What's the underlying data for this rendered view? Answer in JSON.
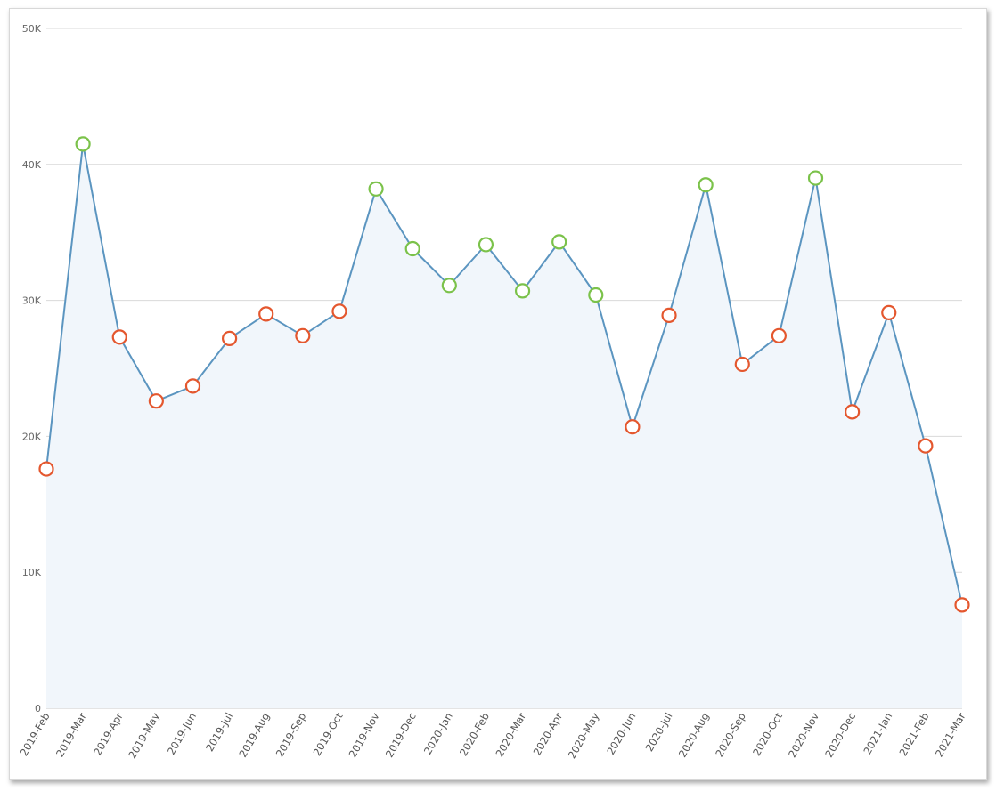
{
  "chart_data": {
    "type": "line",
    "title": "",
    "xlabel": "",
    "ylabel": "",
    "ylim": [
      0,
      50000
    ],
    "yticks": [
      0,
      10000,
      20000,
      30000,
      40000,
      50000
    ],
    "ytick_labels": [
      "0",
      "10K",
      "20K",
      "30K",
      "40K",
      "50K"
    ],
    "grid": true,
    "area_fill": true,
    "colors": {
      "line": "#5b95c0",
      "area": "#f1f6fb",
      "above_average_marker": "#7bc24a",
      "below_average_marker": "#e4572e",
      "gridline": "#d9d9d9"
    },
    "categories": [
      "2019-Feb",
      "2019-Mar",
      "2019-Apr",
      "2019-May",
      "2019-Jun",
      "2019-Jul",
      "2019-Aug",
      "2019-Sep",
      "2019-Oct",
      "2019-Nov",
      "2019-Dec",
      "2020-Jan",
      "2020-Feb",
      "2020-Mar",
      "2020-Apr",
      "2020-May",
      "2020-Jun",
      "2020-Jul",
      "2020-Aug",
      "2020-Sep",
      "2020-Oct",
      "2020-Nov",
      "2020-Dec",
      "2021-Jan",
      "2021-Feb",
      "2021-Mar"
    ],
    "values": [
      17600,
      41500,
      27300,
      22600,
      23700,
      27200,
      29000,
      27400,
      29200,
      38200,
      33800,
      31100,
      34100,
      30700,
      34300,
      30400,
      20700,
      28900,
      38500,
      25300,
      27400,
      39000,
      21800,
      29100,
      19300,
      7600
    ],
    "marker_status": [
      "below",
      "above",
      "below",
      "below",
      "below",
      "below",
      "below",
      "below",
      "below",
      "above",
      "above",
      "above",
      "above",
      "above",
      "above",
      "above",
      "below",
      "below",
      "above",
      "below",
      "below",
      "above",
      "below",
      "below",
      "below",
      "below"
    ]
  }
}
